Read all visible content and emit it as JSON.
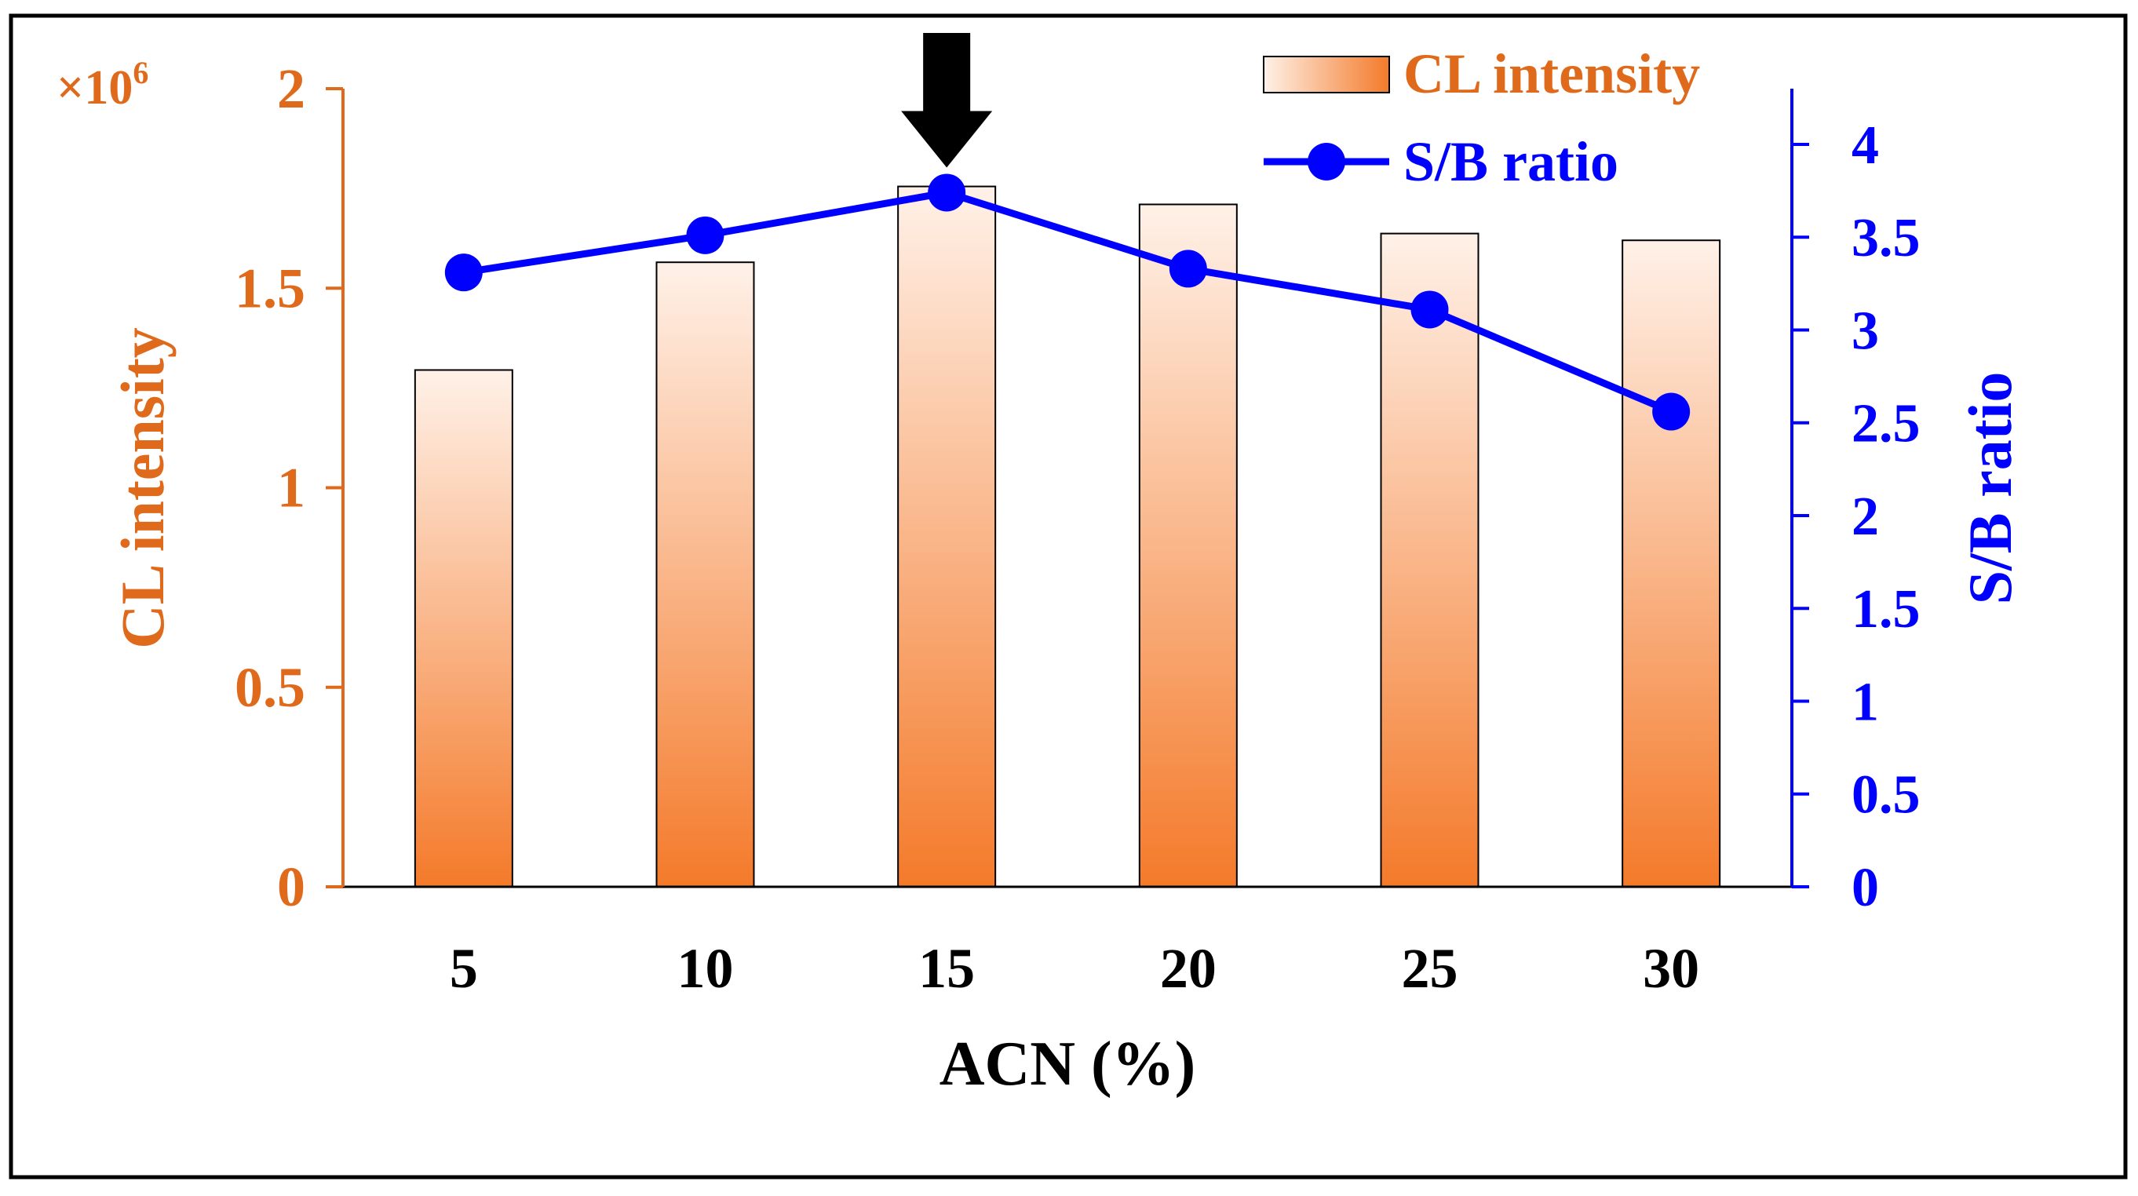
{
  "chart_data": {
    "type": "bar+line",
    "categories": [
      "5",
      "10",
      "15",
      "20",
      "25",
      "30"
    ],
    "series": [
      {
        "name": "CL intensity",
        "kind": "bar",
        "axis": "left",
        "values": [
          1.295,
          1.565,
          1.755,
          1.71,
          1.637,
          1.62
        ],
        "color": "#F07F3C"
      },
      {
        "name": "S/B ratio",
        "kind": "line",
        "axis": "right",
        "values": [
          3.31,
          3.51,
          3.74,
          3.33,
          3.11,
          2.56
        ],
        "color": "#0000FF"
      }
    ],
    "xlabel": "ACN (%)",
    "ylabel_left": "CL intensity",
    "ylabel_right": "S/B ratio",
    "left_multiplier": "×10",
    "left_multiplier_exp": "6",
    "ylim_left": [
      0,
      2
    ],
    "ylim_right": [
      0,
      4.3
    ],
    "yticks_left": [
      "0",
      "0.5",
      "1",
      "1.5",
      "2"
    ],
    "yticks_right": [
      "0",
      "0.5",
      "1",
      "1.5",
      "2",
      "2.5",
      "3",
      "3.5",
      "4"
    ],
    "highlight_category": "15",
    "legend": {
      "position": "top-right",
      "bar_label": "CL intensity",
      "line_label": "S/B ratio"
    },
    "colors": {
      "left_axis": "#E06A1B",
      "right_axis": "#0000FF",
      "bar_top": "#FFF1E8",
      "bar_bottom": "#F47A2A",
      "frame": "#000000"
    }
  }
}
